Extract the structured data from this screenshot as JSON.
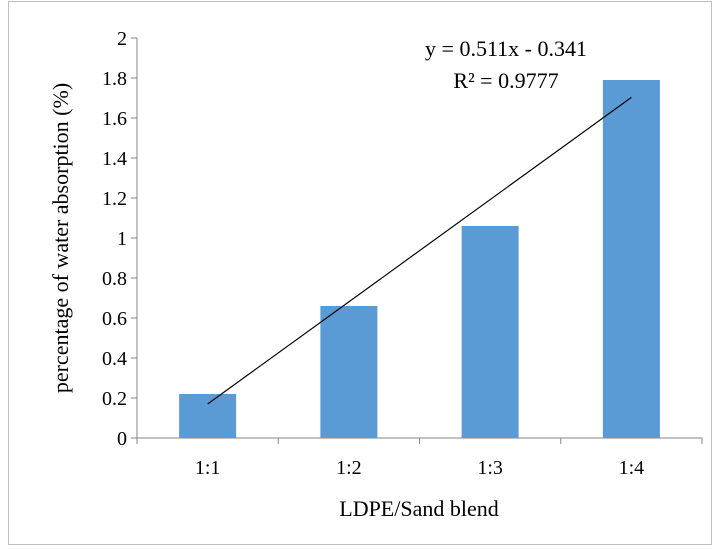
{
  "chart_data": {
    "type": "bar",
    "categories": [
      "1:1",
      "1:2",
      "1:3",
      "1:4"
    ],
    "values": [
      0.22,
      0.66,
      1.06,
      1.79
    ],
    "xlabel": "LDPE/Sand blend",
    "ylabel": "percentage of water absorption (%)",
    "ylim": [
      0,
      2
    ],
    "yticks": [
      "0",
      "0.2",
      "0.4",
      "0.6",
      "0.8",
      "1",
      "1.2",
      "1.4",
      "1.6",
      "1.8",
      "2"
    ],
    "bar_color": "#5b9bd5",
    "grid": false,
    "legend": "none",
    "trendline": {
      "type": "linear",
      "slope": 0.511,
      "intercept": -0.341,
      "equation": "y = 0.511x - 0.341",
      "r_squared": "R² = 0.9777",
      "color": "#000000"
    }
  }
}
